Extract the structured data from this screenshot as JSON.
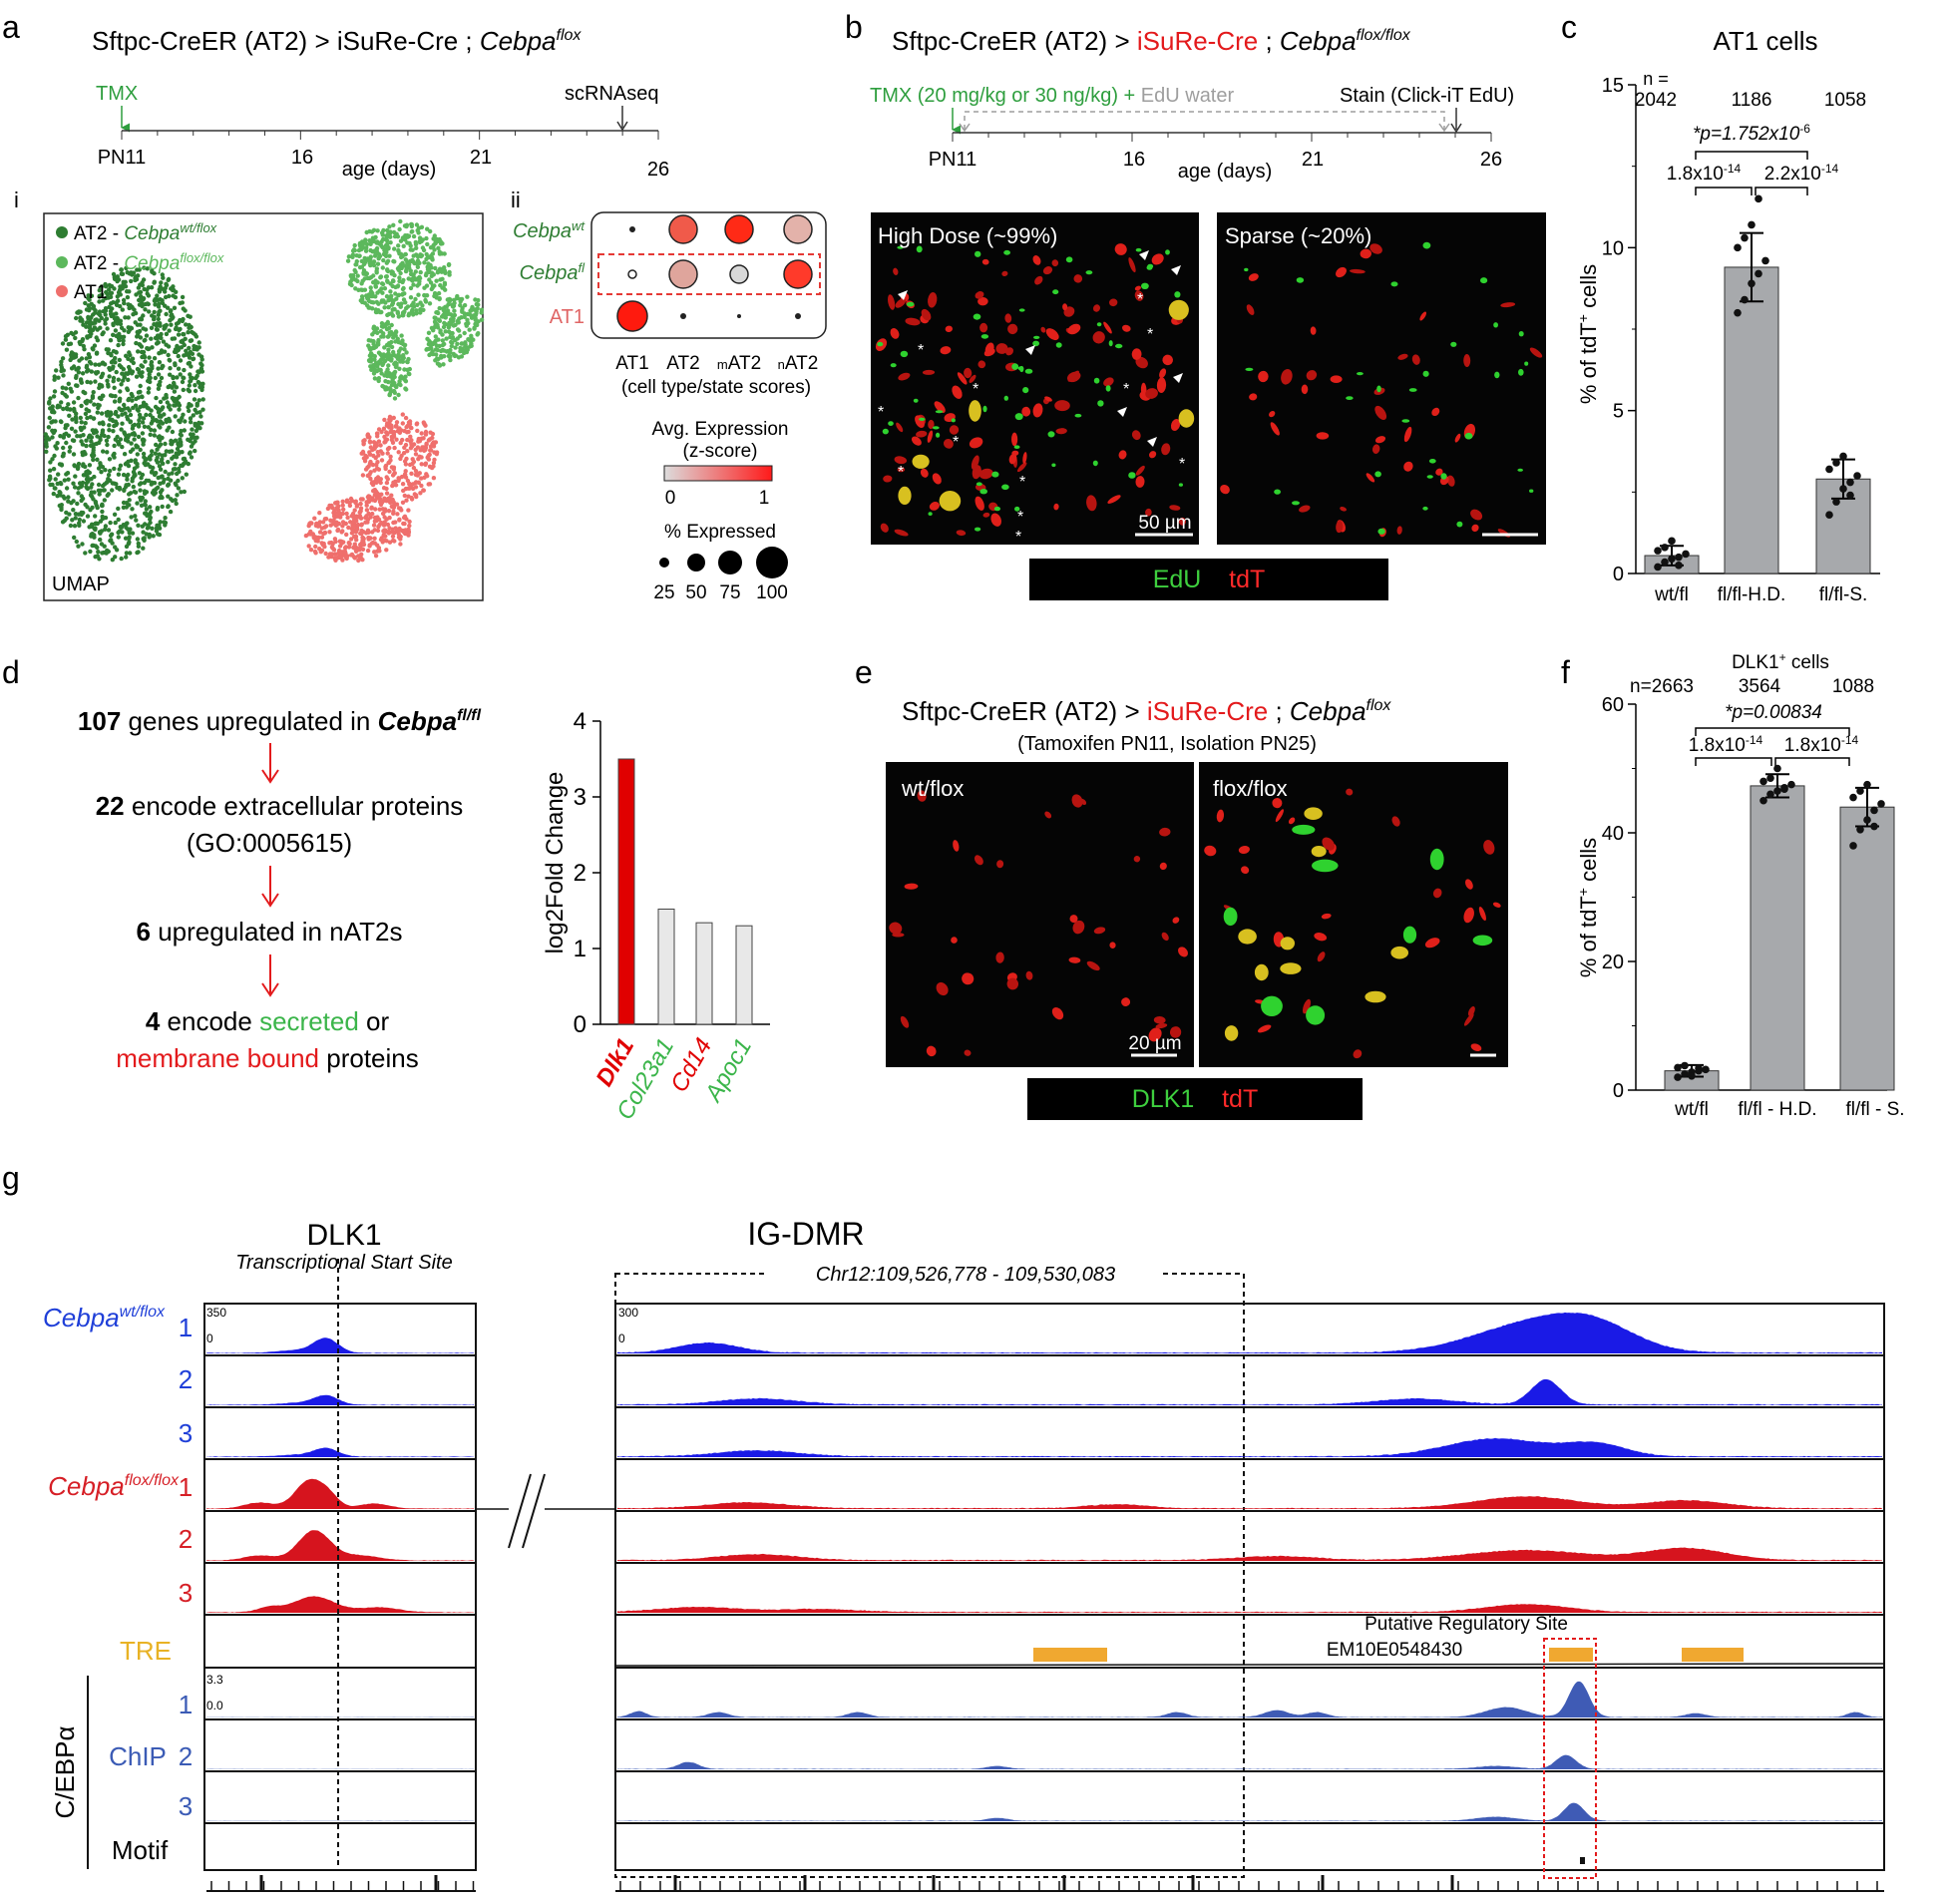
{
  "panel_letters": [
    "a",
    "b",
    "c",
    "d",
    "e",
    "f",
    "g"
  ],
  "panel_a": {
    "title_prefix": "Sftpc-CreER (AT2) > iSuRe-Cre ; ",
    "title_gene": "Cebpa",
    "title_sup": "flox",
    "tmx_label": "TMX",
    "sc_label": "scRNAseq",
    "ticks": [
      "PN11",
      "16",
      "21",
      "26"
    ],
    "axis_label": "age (days)",
    "sub_i": "i",
    "sub_ii": "ii",
    "umap_label": "UMAP",
    "legend": [
      {
        "prefix": "AT2 - ",
        "gene": "Cebpa",
        "sup": "wt/flox",
        "color": "#2e7d32"
      },
      {
        "prefix": "AT2 - ",
        "gene": "Cebpa",
        "sup": "flox/flox",
        "color": "#5cb85c"
      },
      {
        "prefix": "AT1",
        "gene": "",
        "sup": "",
        "color": "#ef6f6c"
      }
    ],
    "dot_rows": [
      {
        "gene": "Cebpa",
        "sup": "wt",
        "color": "#2e7d32"
      },
      {
        "gene": "Cebpa",
        "sup": "fl",
        "color": "#2e7d32"
      },
      {
        "gene": "AT1",
        "sup": "",
        "color": "#e06666"
      }
    ],
    "dot_cols": [
      "AT1",
      "AT2",
      "mAT2",
      "nAT2"
    ],
    "dot_col_sub": [
      "",
      "",
      "m",
      "n"
    ],
    "dot_caption": "(cell type/state scores)",
    "avg_expr_label": "Avg. Expression",
    "zscore_label": "(z-score)",
    "scale_min": "0",
    "scale_max": "1",
    "pct_label": "% Expressed",
    "pct_values": [
      "25",
      "50",
      "75",
      "100"
    ]
  },
  "panel_b": {
    "title_prefix": "Sftpc-CreER (AT2) > ",
    "title_red": "iSuRe-Cre",
    "title_mid": " ; ",
    "title_gene": "Cebpa",
    "title_sup": "flox/flox",
    "tmx_label": "TMX (20 mg/kg or 30 ng/kg) + ",
    "edu_label": "EdU water",
    "stain_label": "Stain (Click-iT EdU)",
    "ticks": [
      "PN11",
      "16",
      "21",
      "26"
    ],
    "axis_label": "age (days)",
    "img1_label": "High Dose (~99%)",
    "img2_label": "Sparse (~20%)",
    "scale_bar": "50 µm",
    "stain_green": "EdU",
    "stain_red": "tdT"
  },
  "panel_c": {
    "title": "AT1 cells",
    "n_label": "n =",
    "n_values": [
      "2042",
      "1186",
      "1058"
    ],
    "p_top": "*p=1.752x10",
    "p_top_exp": "-6",
    "p_left": "1.8x10",
    "p_left_exp": "-14",
    "p_right": "2.2x10",
    "p_right_exp": "-14",
    "ylabel": "% of tdT",
    "ylabel_sup": "+",
    "ylabel_end": " cells",
    "yticks": [
      "0",
      "5",
      "10",
      "15"
    ],
    "categories": [
      "wt/fl",
      "fl/fl-H.D.",
      "fl/fl-S."
    ]
  },
  "panel_d": {
    "line1_num": "107",
    "line1_text": " genes upregulated in ",
    "line1_gene": "Cebpa",
    "line1_sup": "fl/fl",
    "line2_num": "22",
    "line2_text": " encode extracellular proteins",
    "line2b": "(GO:0005615)",
    "line3_num": "6",
    "line3_text": "upregulated in nAT2s",
    "line4_num": "4",
    "line4_a": "encode ",
    "line4_green": "secreted",
    "line4_b": " or",
    "line5_red": "membrane bound",
    "line5_b": " proteins",
    "ylabel": "log2Fold Change",
    "yticks": [
      "0",
      "1",
      "2",
      "3",
      "4"
    ]
  },
  "panel_e": {
    "title_prefix": "Sftpc-CreER (AT2) > ",
    "title_red": "iSuRe-Cre",
    "title_mid": " ; ",
    "title_gene": "Cebpa",
    "title_sup": "flox",
    "subtitle": "(Tamoxifen PN11, Isolation PN25)",
    "img1_label": "wt/flox",
    "img2_label": "flox/flox",
    "scale_bar": "20 µm",
    "stain_green": "DLK1",
    "stain_red": "tdT"
  },
  "panel_f": {
    "title": "DLK1",
    "title_sup": "+",
    "title_end": " cells",
    "n_values": [
      "n=2663",
      "3564",
      "1088"
    ],
    "p_top": "*p=0.00834",
    "p_left": "1.8x10",
    "p_left_exp": "-14",
    "p_right": "1.8x10",
    "p_right_exp": "-14",
    "ylabel": "% of tdT",
    "ylabel_sup": "+",
    "ylabel_end": " cells",
    "yticks": [
      "0",
      "20",
      "40",
      "60"
    ],
    "categories": [
      "wt/fl",
      "fl/fl - H.D.",
      "fl/fl - S."
    ]
  },
  "panel_g": {
    "dlk1_title": "DLK1",
    "dlk1_sub": "Transcriptional Start Site",
    "igdmr_title": "IG-DMR",
    "igdmr_coords": "Chr12:109,526,778 - 109,530,083",
    "wt_gene": "Cebpa",
    "wt_sup": "wt/flox",
    "ko_gene": "Cebpa",
    "ko_sup": "flox/flox",
    "rep_labels": [
      "1",
      "2",
      "3"
    ],
    "tre_label": "TRE",
    "chip_label": "C/EBPα",
    "chip_word": "ChIP",
    "motif_label": "Motif",
    "scale_atac_max": "350",
    "scale_atac_max_right": "300",
    "scale_min": "0",
    "scale_chip_max": "3.3",
    "scale_chip_min": "0.0",
    "reg_site_label": "Putative Regulatory Site",
    "reg_site_id": "EM10E0548430",
    "left_ticks": [
      "109453000",
      "109454000"
    ],
    "right_ticks": [
      "109527000",
      "109528000",
      "109529000",
      "109530000",
      "109531000",
      "109532000",
      "109533000"
    ]
  },
  "chart_data": [
    {
      "type": "bar",
      "title": "AT1 cells",
      "categories": [
        "wt/fl",
        "fl/fl-H.D.",
        "fl/fl-S."
      ],
      "values": [
        0.55,
        9.4,
        2.9
      ],
      "errors": [
        0.3,
        1.05,
        0.6
      ],
      "points": [
        [
          0.2,
          0.35,
          0.45,
          0.5,
          0.6,
          0.7,
          0.8,
          1.0,
          0.25
        ],
        [
          8.0,
          8.4,
          8.9,
          9.2,
          9.6,
          10.0,
          10.3,
          10.7,
          11.5
        ],
        [
          1.8,
          2.2,
          2.6,
          2.8,
          3.0,
          3.2,
          3.4,
          3.6,
          2.4
        ]
      ],
      "ylabel": "% of tdT+ cells",
      "ylim": [
        0,
        15
      ]
    },
    {
      "type": "bar",
      "categories": [
        "Dlk1",
        "Col23a1",
        "Cd14",
        "Apoc1"
      ],
      "values": [
        3.5,
        1.52,
        1.34,
        1.3
      ],
      "colors": [
        "#e00000",
        "#e8e8e8",
        "#e8e8e8",
        "#e8e8e8"
      ],
      "label_colors": [
        "#e00000",
        "#3bb54a",
        "#e00000",
        "#3bb54a"
      ],
      "ylabel": "log2Fold Change",
      "ylim": [
        0,
        4
      ]
    },
    {
      "type": "bar",
      "title": "DLK1+ cells",
      "categories": [
        "wt/fl",
        "fl/fl - H.D.",
        "fl/fl - S."
      ],
      "values": [
        3.0,
        47.3,
        44.0
      ],
      "errors": [
        0.9,
        1.8,
        3.0
      ],
      "points": [
        [
          2.0,
          2.5,
          2.8,
          3.0,
          3.2,
          3.5,
          3.8,
          2.2,
          3.4
        ],
        [
          45.0,
          46.0,
          46.5,
          47.0,
          47.5,
          48.0,
          48.5,
          50.0,
          46.8
        ],
        [
          38.0,
          40.5,
          42.0,
          43.5,
          44.5,
          45.5,
          46.5,
          47.5,
          41.0
        ]
      ],
      "ylabel": "% of tdT+ cells",
      "ylim": [
        0,
        60
      ]
    }
  ]
}
